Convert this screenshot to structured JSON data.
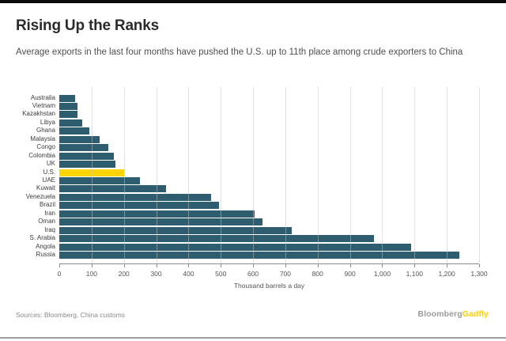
{
  "header": {
    "title": "Rising Up the Ranks",
    "subtitle": "Average exports in the last four months have pushed the U.S. up to 11th place among crude exporters to China"
  },
  "chart_data": {
    "type": "bar",
    "orientation": "horizontal",
    "title": "Rising Up the Ranks",
    "subtitle": "Average exports in the last four months have pushed the U.S. up to 11th place among crude exporters to China",
    "xlabel": "Thousand barrels a day",
    "ylabel": "",
    "xlim": [
      0,
      1300
    ],
    "x_tick_values": [
      0,
      100,
      200,
      300,
      400,
      500,
      600,
      700,
      800,
      900,
      1000,
      1100,
      1200,
      1300
    ],
    "x_tick_labels": [
      "0",
      "100",
      "200",
      "300",
      "400",
      "500",
      "600",
      "700",
      "800",
      "900",
      "1,000",
      "1,100",
      "1,200",
      "1,300"
    ],
    "grid": "vertical-gridlines-on",
    "legend": "none",
    "categories": [
      "Australia",
      "Vietnam",
      "Kazakhstan",
      "Libya",
      "Ghana",
      "Malaysia",
      "Congo",
      "Colombia",
      "UK",
      "U.S.",
      "UAE",
      "Kuwait",
      "Venezuela",
      "Brazil",
      "Iran",
      "Oman",
      "Iraq",
      "S. Arabia",
      "Angola",
      "Russia"
    ],
    "values": [
      50,
      57,
      57,
      70,
      92,
      125,
      152,
      168,
      175,
      200,
      250,
      330,
      470,
      495,
      605,
      630,
      720,
      975,
      1090,
      1240
    ],
    "highlight_category": "U.S.",
    "bar_color": "#2d5d6f",
    "highlight_color": "#ffd404"
  },
  "footer": {
    "sources": "Sources: Bloomberg, China customs",
    "brand_gray": "Bloomberg",
    "brand_gold": "Gadfly"
  },
  "colors": {
    "top_bar": "#0a0a0a",
    "title_text": "#2b2b2b",
    "subtitle_text": "#4f4f4f",
    "axis_line": "#8c8c8c",
    "tick_text": "#555555",
    "gridline": "#dfe3e5",
    "footer_text": "#8a8a8a",
    "brand_gray": "#9b9b9b",
    "brand_gold": "#ffce00"
  }
}
